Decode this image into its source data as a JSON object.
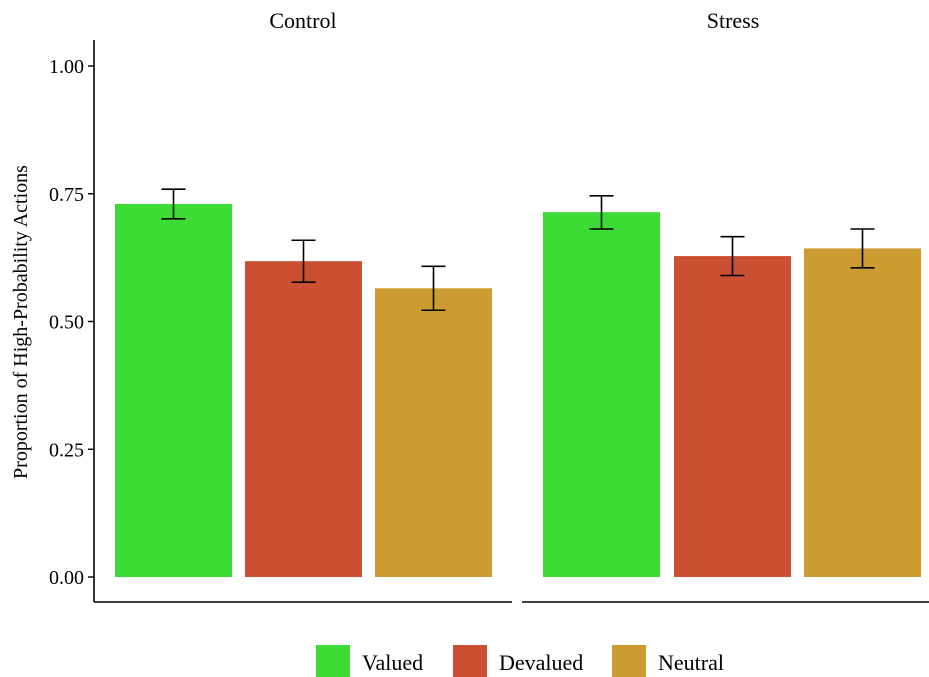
{
  "chart_data": {
    "type": "bar",
    "ylabel": "Proportion of High-Probability Actions",
    "ylim": [
      0,
      1.04
    ],
    "yticks": [
      "0.00",
      "0.25",
      "0.50",
      "0.75",
      "1.00"
    ],
    "ytick_values": [
      0,
      0.25,
      0.5,
      0.75,
      1.0
    ],
    "grid": false,
    "legend_position": "bottom",
    "categories": [
      "Valued",
      "Devalued",
      "Neutral"
    ],
    "colors": {
      "Valued": "#3ddb35",
      "Devalued": "#cb4f32",
      "Neutral": "#cc9c33"
    },
    "facets": [
      {
        "title": "Control",
        "values": [
          0.73,
          0.618,
          0.565
        ],
        "errors": [
          [
            0.701,
            0.759
          ],
          [
            0.577,
            0.659
          ],
          [
            0.522,
            0.608
          ]
        ]
      },
      {
        "title": "Stress",
        "values": [
          0.714,
          0.628,
          0.643
        ],
        "errors": [
          [
            0.681,
            0.746
          ],
          [
            0.59,
            0.666
          ],
          [
            0.605,
            0.681
          ]
        ]
      }
    ],
    "legend": [
      "Valued",
      "Devalued",
      "Neutral"
    ]
  }
}
